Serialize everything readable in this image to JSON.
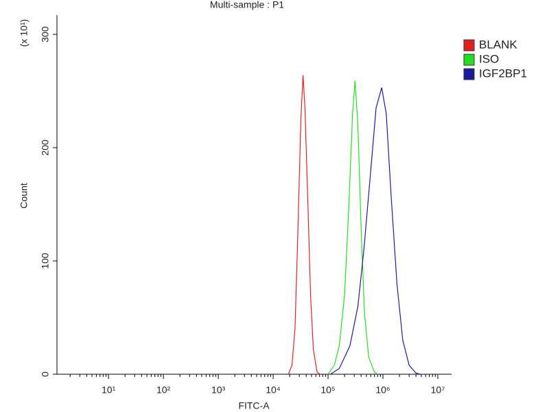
{
  "chart_data": {
    "type": "line",
    "title": "Multi-sample : P1",
    "xlabel": "FITC-A",
    "ylabel": "Count",
    "y_annotation": "(x 10¹)",
    "xscale": "log",
    "legend": "right",
    "xlim": [
      1.15,
      17800000
    ],
    "ylim": [
      0,
      317
    ],
    "xticks": [
      {
        "value": 10,
        "label": "10¹"
      },
      {
        "value": 100,
        "label": "10²"
      },
      {
        "value": 1000,
        "label": "10³"
      },
      {
        "value": 10000,
        "label": "10⁴"
      },
      {
        "value": 100000,
        "label": "10⁵"
      },
      {
        "value": 1000000,
        "label": "10⁶"
      },
      {
        "value": 10000000,
        "label": "10⁷"
      }
    ],
    "yticks": [
      0,
      100,
      200,
      300
    ],
    "series": [
      {
        "name": "BLANK",
        "color": "#e02020",
        "x": [
          19000,
          22000,
          25000,
          28000,
          32000,
          35000,
          38000,
          43000,
          48000,
          54000,
          63000,
          71000
        ],
        "values": [
          0,
          8,
          40,
          120,
          225,
          264,
          235,
          150,
          70,
          22,
          2,
          0
        ]
      },
      {
        "name": "ISO",
        "color": "#22dd22",
        "x": [
          100000,
          130000,
          160000,
          200000,
          240000,
          280000,
          310000,
          350000,
          400000,
          460000,
          550000,
          700000,
          800000
        ],
        "values": [
          0,
          8,
          25,
          70,
          150,
          230,
          259,
          220,
          130,
          55,
          15,
          2,
          0
        ]
      },
      {
        "name": "IGF2BP1",
        "color": "#1a1aa0",
        "x": [
          110000,
          160000,
          250000,
          350000,
          450000,
          600000,
          750000,
          950000,
          1150000,
          1400000,
          1800000,
          2300000,
          3000000,
          4000000,
          4800000
        ],
        "values": [
          0,
          5,
          25,
          60,
          110,
          180,
          235,
          253,
          230,
          160,
          80,
          30,
          8,
          1,
          0
        ]
      }
    ]
  }
}
